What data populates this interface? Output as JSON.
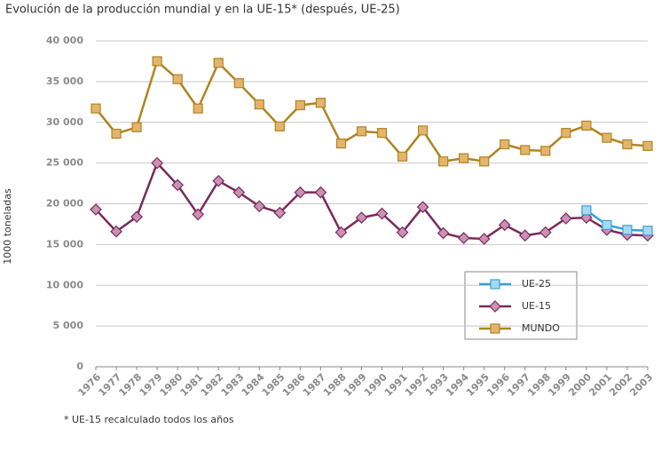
{
  "chart_data": {
    "type": "line",
    "title": "Evolución de la producción mundial y en la UE-15* (después, UE-25)",
    "y_label": "1000 toneladas",
    "footnote": "* UE-15 recalculado todos los años",
    "categories": [
      "1976",
      "1977",
      "1978",
      "1979",
      "1980",
      "1981",
      "1982",
      "1983",
      "1984",
      "1985",
      "1986",
      "1987",
      "1988",
      "1989",
      "1990",
      "1991",
      "1992",
      "1993",
      "1994",
      "1995",
      "1996",
      "1997",
      "1998",
      "1999",
      "2000",
      "2001",
      "2002",
      "2003"
    ],
    "series": [
      {
        "name": "UE-25",
        "color": "#3a9fd6",
        "marker_fill": "#a9d9f2",
        "marker": "square",
        "values": [
          null,
          null,
          null,
          null,
          null,
          null,
          null,
          null,
          null,
          null,
          null,
          null,
          null,
          null,
          null,
          null,
          null,
          null,
          null,
          null,
          null,
          null,
          null,
          null,
          19200,
          17400,
          16800,
          16700
        ]
      },
      {
        "name": "UE-15",
        "color": "#7a2a5c",
        "marker_fill": "#c992b4",
        "marker": "diamond",
        "values": [
          19300,
          16600,
          18400,
          25000,
          22300,
          18700,
          22800,
          21400,
          19700,
          18900,
          21400,
          21400,
          16500,
          18300,
          18800,
          16500,
          19600,
          16400,
          15800,
          15700,
          17400,
          16100,
          16500,
          18200,
          18300,
          16800,
          16200,
          16100
        ]
      },
      {
        "name": "MUNDO",
        "color": "#b0841f",
        "marker_fill": "#e2b46e",
        "marker": "square",
        "values": [
          31700,
          28600,
          29400,
          37500,
          35300,
          31700,
          37300,
          34800,
          32200,
          29500,
          32100,
          32400,
          27400,
          28900,
          28700,
          25800,
          29000,
          25200,
          25600,
          25200,
          27300,
          26600,
          26500,
          28700,
          29600,
          28100,
          27300,
          27100
        ]
      }
    ],
    "ylim": [
      0,
      40000
    ],
    "yticks": [
      0,
      {
        "value": 5000,
        "label": "5 000"
      },
      {
        "value": 10000,
        "label": "10 000"
      },
      {
        "value": 15000,
        "label": "15 000"
      },
      {
        "value": 20000,
        "label": "20 000"
      },
      {
        "value": 25000,
        "label": "25 000"
      },
      {
        "value": 30000,
        "label": "30 000"
      },
      {
        "value": 35000,
        "label": "35 000"
      },
      {
        "value": 40000,
        "label": "40 000"
      }
    ],
    "grid": true
  }
}
